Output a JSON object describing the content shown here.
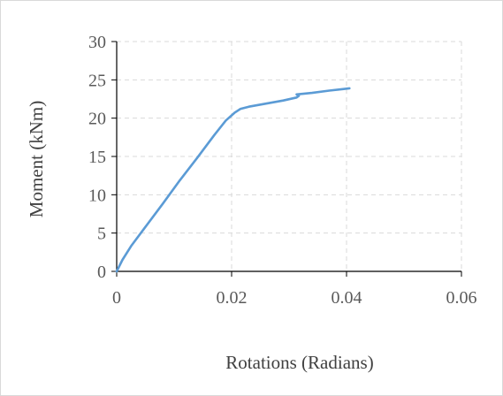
{
  "chart_data": {
    "type": "line",
    "title": "",
    "xlabel": "Rotations (Radians)",
    "ylabel": "Moment (kNm)",
    "xlim": [
      0,
      0.06
    ],
    "ylim": [
      0,
      30
    ],
    "x_ticks": [
      "0",
      "0.02",
      "0.04",
      "0.06"
    ],
    "y_ticks": [
      "0",
      "5",
      "10",
      "15",
      "20",
      "25",
      "30"
    ],
    "grid": true,
    "legend": "none",
    "series": [
      {
        "color": "#5b9bd5",
        "points": [
          [
            0,
            0
          ],
          [
            0.001,
            1.5
          ],
          [
            0.0025,
            3.3
          ],
          [
            0.005,
            5.8
          ],
          [
            0.008,
            8.8
          ],
          [
            0.011,
            11.9
          ],
          [
            0.014,
            14.8
          ],
          [
            0.017,
            17.8
          ],
          [
            0.019,
            19.7
          ],
          [
            0.0205,
            20.7
          ],
          [
            0.0215,
            21.2
          ],
          [
            0.023,
            21.5
          ],
          [
            0.026,
            21.9
          ],
          [
            0.029,
            22.3
          ],
          [
            0.0313,
            22.7
          ],
          [
            0.0317,
            22.9
          ],
          [
            0.0313,
            23.1
          ],
          [
            0.034,
            23.3
          ],
          [
            0.037,
            23.6
          ],
          [
            0.0395,
            23.8
          ],
          [
            0.0405,
            23.9
          ]
        ]
      }
    ]
  }
}
